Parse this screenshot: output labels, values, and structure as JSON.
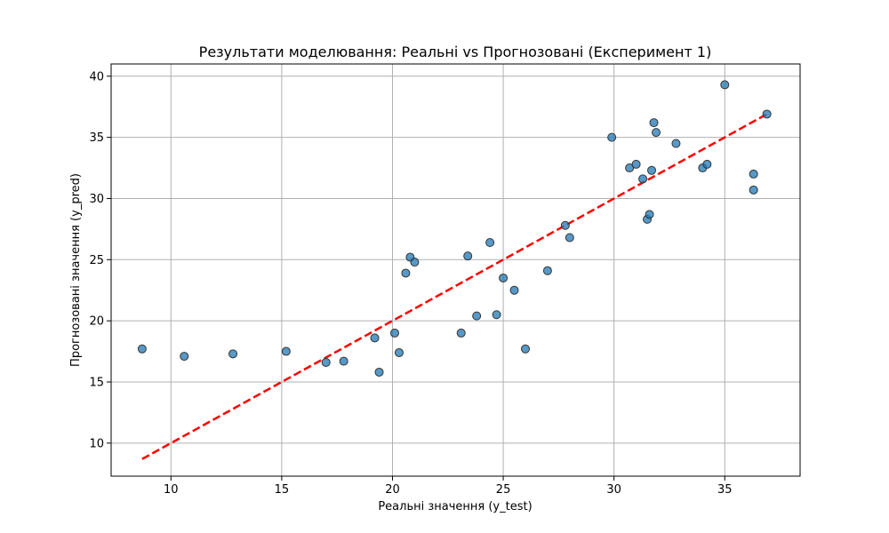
{
  "chart_data": {
    "type": "scatter",
    "title": "Результати моделювання: Реальні vs Прогнозовані (Експеримент 1)",
    "xlabel": "Реальні значення (y_test)",
    "ylabel": "Прогнозовані значення (y_pred)",
    "xlim": [
      7.3,
      38.4
    ],
    "ylim": [
      7.3,
      41.0
    ],
    "xticks": [
      10,
      15,
      20,
      25,
      30,
      35
    ],
    "yticks": [
      10,
      15,
      20,
      25,
      30,
      35,
      40
    ],
    "xtick_labels": [
      "10",
      "15",
      "20",
      "25",
      "30",
      "35"
    ],
    "ytick_labels": [
      "10",
      "15",
      "20",
      "25",
      "30",
      "35",
      "40"
    ],
    "grid": true,
    "point_color": "#1f77b4",
    "point_edge_color": "#333333",
    "reference_line": {
      "style": "dashed",
      "color": "#ff0000",
      "x": [
        8.7,
        36.9
      ],
      "y": [
        8.7,
        36.9
      ]
    },
    "points": [
      {
        "x": 8.7,
        "y": 17.7
      },
      {
        "x": 10.6,
        "y": 17.1
      },
      {
        "x": 12.8,
        "y": 17.3
      },
      {
        "x": 15.2,
        "y": 17.5
      },
      {
        "x": 17.0,
        "y": 16.6
      },
      {
        "x": 17.8,
        "y": 16.7
      },
      {
        "x": 19.2,
        "y": 18.6
      },
      {
        "x": 19.4,
        "y": 15.8
      },
      {
        "x": 20.1,
        "y": 19.0
      },
      {
        "x": 20.3,
        "y": 17.4
      },
      {
        "x": 20.6,
        "y": 23.9
      },
      {
        "x": 20.8,
        "y": 25.2
      },
      {
        "x": 21.0,
        "y": 24.8
      },
      {
        "x": 23.1,
        "y": 19.0
      },
      {
        "x": 23.4,
        "y": 25.3
      },
      {
        "x": 23.8,
        "y": 20.4
      },
      {
        "x": 24.4,
        "y": 26.4
      },
      {
        "x": 24.7,
        "y": 20.5
      },
      {
        "x": 25.0,
        "y": 23.5
      },
      {
        "x": 25.5,
        "y": 22.5
      },
      {
        "x": 26.0,
        "y": 17.7
      },
      {
        "x": 27.0,
        "y": 24.1
      },
      {
        "x": 27.8,
        "y": 27.8
      },
      {
        "x": 28.0,
        "y": 26.8
      },
      {
        "x": 29.9,
        "y": 35.0
      },
      {
        "x": 30.7,
        "y": 32.5
      },
      {
        "x": 31.0,
        "y": 32.8
      },
      {
        "x": 31.3,
        "y": 31.6
      },
      {
        "x": 31.5,
        "y": 28.3
      },
      {
        "x": 31.6,
        "y": 28.7
      },
      {
        "x": 31.7,
        "y": 32.3
      },
      {
        "x": 31.8,
        "y": 36.2
      },
      {
        "x": 31.9,
        "y": 35.4
      },
      {
        "x": 32.8,
        "y": 34.5
      },
      {
        "x": 34.0,
        "y": 32.5
      },
      {
        "x": 34.2,
        "y": 32.8
      },
      {
        "x": 35.0,
        "y": 39.3
      },
      {
        "x": 36.3,
        "y": 32.0
      },
      {
        "x": 36.3,
        "y": 30.7
      },
      {
        "x": 36.9,
        "y": 36.9
      }
    ]
  }
}
